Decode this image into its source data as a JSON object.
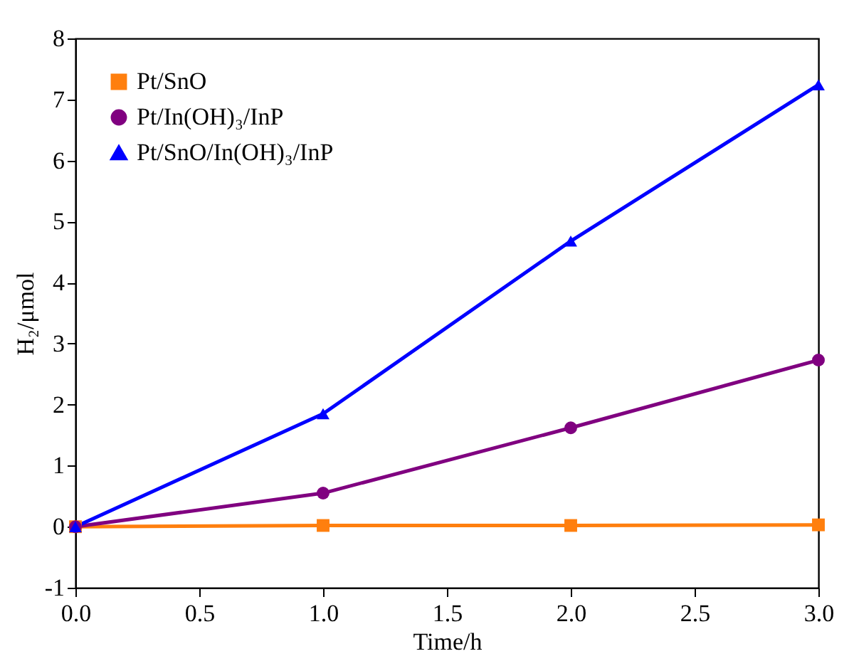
{
  "chart_data": {
    "type": "line",
    "xlabel": "Time/h",
    "ylabel": "H₂/μmol",
    "x": [
      0,
      1,
      2,
      3
    ],
    "series": [
      {
        "name": "Pt/SnO",
        "color": "#ff7f0e",
        "marker": "square",
        "values": [
          0,
          0.02,
          0.02,
          0.03
        ]
      },
      {
        "name": "Pt/In(OH)₃/InP",
        "color": "#800080",
        "marker": "circle",
        "values": [
          0,
          0.55,
          1.62,
          2.73
        ]
      },
      {
        "name": "Pt/SnO/In(OH)₃/InP",
        "color": "#0000ff",
        "marker": "triangle",
        "values": [
          0,
          1.85,
          4.68,
          7.24
        ]
      }
    ],
    "xlim": [
      0,
      3
    ],
    "xticks": [
      {
        "value": 0,
        "label": "0.0"
      },
      {
        "value": 0.5,
        "label": "0.5"
      },
      {
        "value": 1,
        "label": "1.0"
      },
      {
        "value": 1.5,
        "label": "1.5"
      },
      {
        "value": 2,
        "label": "2.0"
      },
      {
        "value": 2.5,
        "label": "2.5"
      },
      {
        "value": 3,
        "label": "3.0"
      }
    ],
    "ylim": [
      -1,
      8
    ],
    "yticks": [
      -1,
      0,
      1,
      2,
      3,
      4,
      5,
      6,
      7,
      8
    ],
    "legend": "top left",
    "grid": false,
    "line_style": "solid"
  }
}
